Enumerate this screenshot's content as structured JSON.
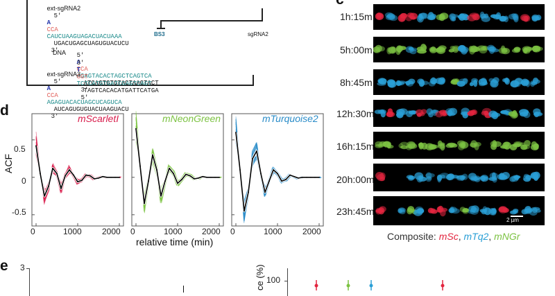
{
  "panel_c": {
    "letter": "c",
    "time_labels": [
      "1h:15m",
      "5h:00m",
      "8h:45m",
      "12h:30m",
      "16h:15m",
      "20h:00m",
      "23h:45m"
    ],
    "scale_bar": "2 µm",
    "composite": {
      "prefix": "Composite: ",
      "msc": "mSc",
      "sep1": ", ",
      "mtq2": "mTq2",
      "sep2": ", ",
      "mngr": "mNGr"
    },
    "colors": {
      "msc": "#e3253f",
      "mtq2": "#2a9fd6",
      "mngr": "#7cc242"
    }
  },
  "panel_top": {
    "ext_sgRNA2": {
      "label": "ext-sgRNA2",
      "five": "5'",
      "base": "A",
      "cca": "CCA",
      "spacer": "CAUCUAAGUAGACUACUAAA",
      "tail": "UGACUGAGCUAGUGUACUCU",
      "three": "3'"
    },
    "bs3": "BS3",
    "sgRNA2": "sgRNA2",
    "dna": {
      "label": "DNA",
      "top": {
        "five": "5'",
        "base": "A",
        "cca": "CCA",
        "spacer": "AGAGTACACTAGCTCAGTCA",
        "tail": "ATCAGTGTGTACTAAGTACT",
        "three": "3'"
      },
      "bottom": {
        "three": "3'",
        "base": "T",
        "ggt": "GGT",
        "spacer": "TCTCATGTGATCGAGTCAGT",
        "tail": "TAGTCACACATGATTCATGA",
        "five": "5'"
      }
    },
    "ext_sgRNA3": {
      "label": "ext-sgRNA3",
      "five": "5'",
      "base": "A",
      "cca": "CCA",
      "spacer": "AGAGUACACUAGCUCAGUCA",
      "tail": "AUCAGUGUGUACUAAGUACU",
      "three": "3'"
    }
  },
  "panel_d": {
    "letter": "d",
    "ylabel": "ACF",
    "xlabel": "relative time (min)",
    "y_ticks": [
      "0.5",
      "0",
      "-0.5"
    ],
    "x_ticks": [
      "0",
      "1000",
      "2000"
    ]
  },
  "panel_e": {
    "letter": "e",
    "left_y_tick": "3",
    "right_y_tick": "100",
    "right_ylabel_fragment": "ce (%)"
  },
  "chart_data": [
    {
      "type": "line",
      "title": "mScarletI",
      "color": "#d81b4a",
      "mean_color": "#000000",
      "x": [
        0,
        100,
        200,
        300,
        400,
        500,
        600,
        700,
        800,
        900,
        1000,
        1100,
        1200,
        1300,
        1400,
        1500,
        1600,
        1700,
        1800,
        1900,
        2000
      ],
      "values": [
        0.42,
        0.05,
        -0.25,
        -0.12,
        0.12,
        0.05,
        -0.15,
        0.02,
        0.1,
        0.03,
        -0.06,
        -0.04,
        0.03,
        0.02,
        -0.02,
        -0.01,
        0.01,
        0.0,
        0.0,
        0.0,
        0.0
      ],
      "xlim": [
        -100,
        2100
      ],
      "ylim": [
        -0.65,
        0.85
      ],
      "xlabel": "",
      "ylabel": "ACF"
    },
    {
      "type": "line",
      "title": "mNeonGreen",
      "color": "#7cc242",
      "mean_color": "#000000",
      "x": [
        0,
        100,
        200,
        300,
        400,
        500,
        600,
        700,
        800,
        900,
        1000,
        1100,
        1200,
        1300,
        1400,
        1500,
        1600,
        1700,
        1800,
        1900,
        2000
      ],
      "values": [
        0.65,
        0.15,
        -0.35,
        -0.05,
        0.3,
        0.1,
        -0.25,
        -0.05,
        0.12,
        0.05,
        -0.08,
        -0.03,
        0.04,
        0.02,
        -0.02,
        -0.01,
        0.01,
        0.0,
        0.0,
        0.0,
        0.0
      ],
      "xlim": [
        -100,
        2100
      ],
      "ylim": [
        -0.65,
        0.85
      ],
      "xlabel": "relative time (min)",
      "ylabel": ""
    },
    {
      "type": "line",
      "title": "mTurquoise2",
      "color": "#2a8cc8",
      "mean_color": "#000000",
      "x": [
        0,
        100,
        200,
        300,
        400,
        500,
        600,
        700,
        800,
        900,
        1000,
        1100,
        1200,
        1300,
        1400,
        1500,
        1600,
        1700,
        1800,
        1900,
        2000
      ],
      "values": [
        0.6,
        0.1,
        -0.45,
        -0.2,
        0.25,
        0.35,
        0.05,
        -0.2,
        -0.05,
        0.1,
        0.05,
        -0.05,
        -0.03,
        0.03,
        0.01,
        -0.01,
        0.0,
        0.0,
        0.0,
        0.0,
        0.0
      ],
      "xlim": [
        -100,
        2100
      ],
      "ylim": [
        -0.65,
        0.85
      ],
      "xlabel": "",
      "ylabel": ""
    }
  ]
}
